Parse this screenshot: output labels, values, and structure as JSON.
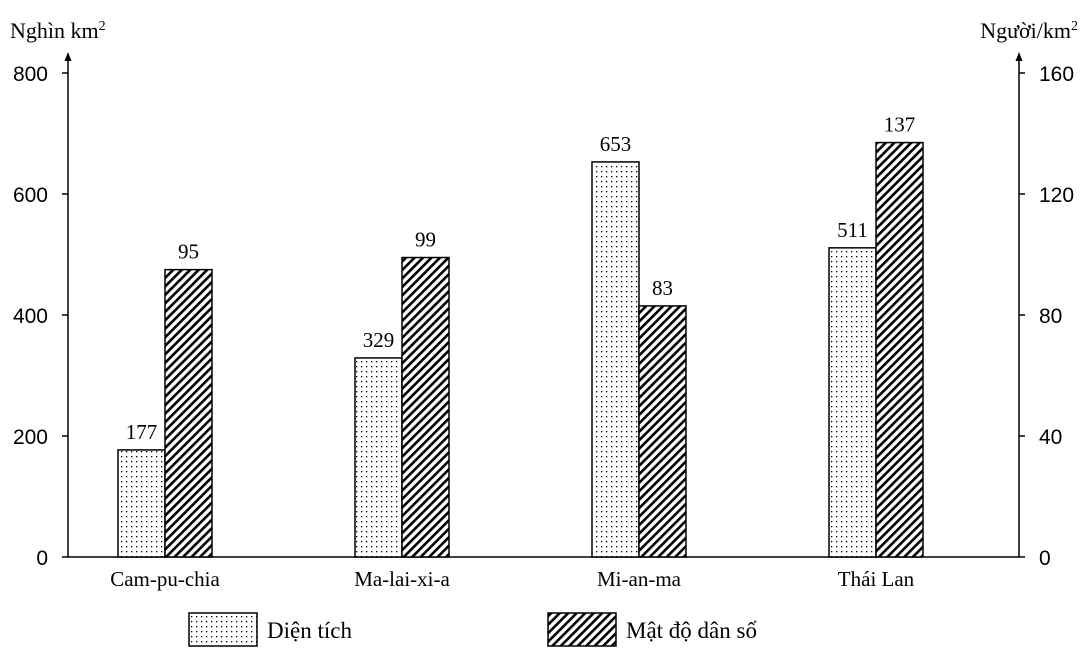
{
  "chart_data": {
    "type": "bar",
    "categories": [
      "Cam-pu-chia",
      "Ma-lai-xi-a",
      "Mi-an-ma",
      "Thái Lan"
    ],
    "series": [
      {
        "name": "Diện tích",
        "axis": "left",
        "pattern": "dots",
        "values": [
          177,
          329,
          653,
          511
        ]
      },
      {
        "name": "Mật độ dân số",
        "axis": "right",
        "pattern": "hatch",
        "values": [
          95,
          99,
          83,
          137
        ]
      }
    ],
    "left_axis": {
      "label": "Nghìn km",
      "label_sup": "2",
      "ylim": [
        0,
        800
      ],
      "ticks": [
        0,
        200,
        400,
        600,
        800
      ]
    },
    "right_axis": {
      "label": "Người/km",
      "label_sup": "2",
      "ylim": [
        0,
        160
      ],
      "ticks": [
        0,
        40,
        80,
        120,
        160
      ]
    },
    "grid": false,
    "legend_position": "bottom"
  }
}
